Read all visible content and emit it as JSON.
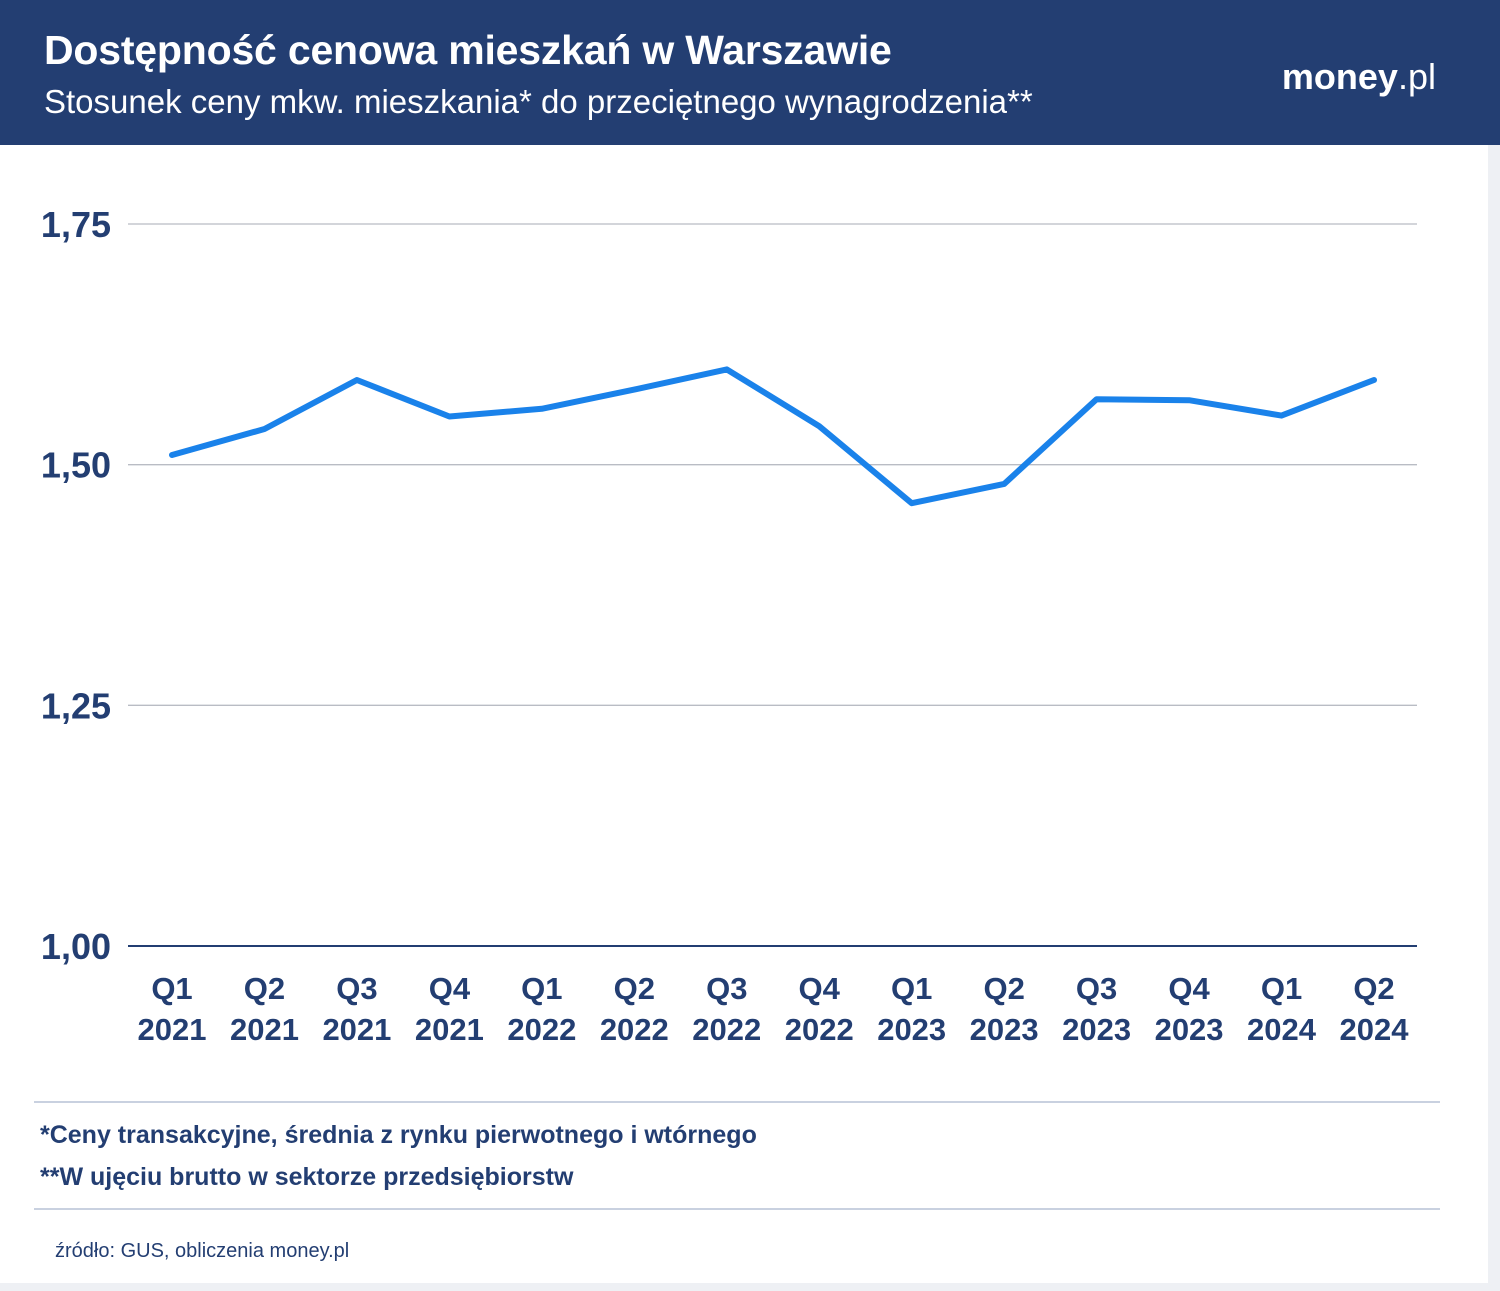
{
  "header": {
    "title": "Dostępność cenowa mieszkań w Warszawie",
    "subtitle": "Stosunek ceny mkw. mieszkania* do przeciętnego wynagrodzenia**",
    "logo_brand": "money",
    "logo_tld": ".pl"
  },
  "colors": {
    "header_bg": "#233e72",
    "line": "#1a82ea",
    "text": "#233e72",
    "grid": "#b9bcc4"
  },
  "chart_data": {
    "type": "line",
    "title": "Dostępność cenowa mieszkań w Warszawie",
    "subtitle": "Stosunek ceny mkw. mieszkania* do przeciętnego wynagrodzenia**",
    "categories": [
      [
        "Q1",
        "2021"
      ],
      [
        "Q2",
        "2021"
      ],
      [
        "Q3",
        "2021"
      ],
      [
        "Q4",
        "2021"
      ],
      [
        "Q1",
        "2022"
      ],
      [
        "Q2",
        "2022"
      ],
      [
        "Q3",
        "2022"
      ],
      [
        "Q4",
        "2022"
      ],
      [
        "Q1",
        "2023"
      ],
      [
        "Q2",
        "2023"
      ],
      [
        "Q3",
        "2023"
      ],
      [
        "Q4",
        "2023"
      ],
      [
        "Q1",
        "2024"
      ],
      [
        "Q2",
        "2024"
      ]
    ],
    "series": [
      {
        "name": "Stosunek ceny mkw. mieszkania do przeciętnego wynagrodzenia",
        "values": [
          1.51,
          1.537,
          1.588,
          1.55,
          1.558,
          1.578,
          1.599,
          1.54,
          1.46,
          1.48,
          1.568,
          1.567,
          1.551,
          1.588
        ]
      }
    ],
    "yticks": [
      1.0,
      1.25,
      1.5,
      1.75
    ],
    "ytick_labels": [
      "1,00",
      "1,25",
      "1,50",
      "1,75"
    ],
    "ylim": [
      1.0,
      1.75
    ],
    "xlabel": "",
    "ylabel": "",
    "grid": true,
    "legend": "none"
  },
  "notes": {
    "note1": "*Ceny transakcyjne, średnia z rynku pierwotnego i wtórnego",
    "note2": "**W ujęciu brutto w sektorze przedsiębiorstw"
  },
  "source": "źródło: GUS, obliczenia money.pl"
}
